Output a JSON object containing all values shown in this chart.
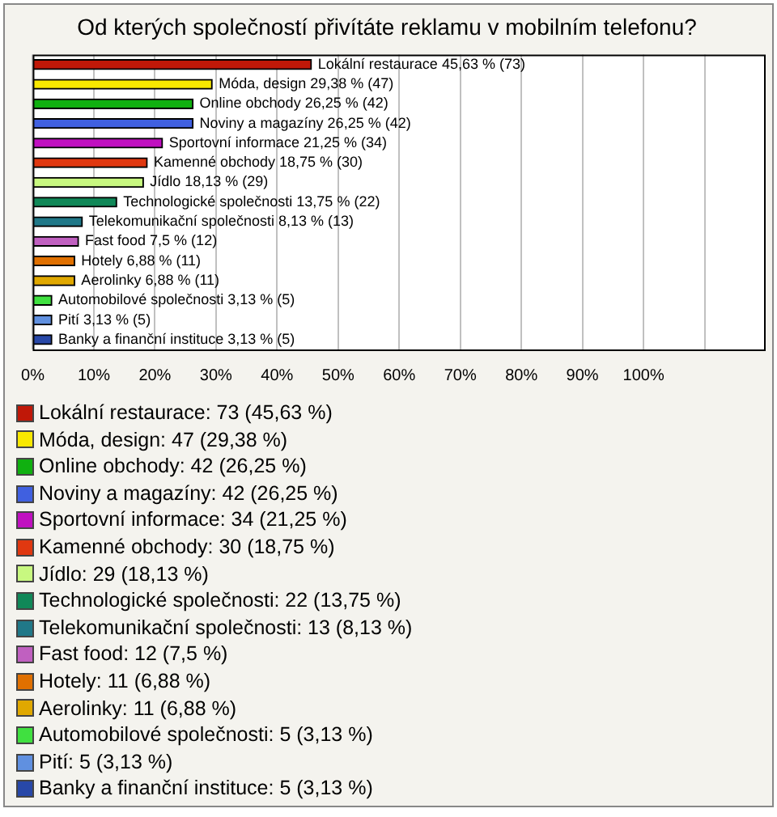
{
  "chart_data": {
    "type": "bar",
    "orientation": "horizontal",
    "title": "Od kterých společností přivítáte reklamu v mobilním telefonu?",
    "categories": [
      "Lokální restaurace",
      "Móda, design",
      "Online obchody",
      "Noviny a magazíny",
      "Sportovní informace",
      "Kamenné obchody",
      "Jídlo",
      "Technologické společnosti",
      "Telekomunikační společnosti",
      "Fast food",
      "Hotely",
      "Aerolinky",
      "Automobilové společnosti",
      "Pití",
      "Banky a finanční instituce"
    ],
    "values": [
      45.63,
      29.38,
      26.25,
      26.25,
      21.25,
      18.75,
      18.13,
      13.75,
      8.13,
      7.5,
      6.88,
      6.88,
      3.13,
      3.13,
      3.13
    ],
    "value_labels": [
      "45,63 % (73)",
      "29,38 % (47)",
      "26,25 % (42)",
      "26,25 % (42)",
      "21,25 % (34)",
      "18,75 % (30)",
      "18,13 % (29)",
      "13,75 % (22)",
      "8,13 % (13)",
      "7,5 % (12)",
      "6,88 % (11)",
      "6,88 % (11)",
      "3,13 % (5)",
      "3,13 % (5)",
      "3,13 % (5)"
    ],
    "colors": [
      "#c01808",
      "#f8e800",
      "#10b010",
      "#4060e0",
      "#c010c0",
      "#e03810",
      "#c8f880",
      "#108858",
      "#207888",
      "#c060c0",
      "#e07000",
      "#e0a800",
      "#40e040",
      "#6090e0",
      "#2848a8"
    ],
    "annotations": [
      "Lokální restaurace: 73 (45,63 %)",
      "Móda, design: 47 (29,38 %)",
      "Online obchody: 42 (26,25 %)",
      "Noviny a magazíny: 42 (26,25 %)",
      "Sportovní informace: 34 (21,25 %)",
      "Kamenné obchody: 30 (18,75 %)",
      "Jídlo: 29 (18,13 %)",
      "Technologické společnosti: 22 (13,75 %)",
      "Telekomunikační společnosti: 13 (8,13 %)",
      "Fast food: 12 (7,5 %)",
      "Hotely: 11 (6,88 %)",
      "Aerolinky: 11 (6,88 %)",
      "Automobilové společnosti: 5 (3,13 %)",
      "Pití: 5 (3,13 %)",
      "Banky a finanční instituce: 5 (3,13 %)"
    ],
    "xlim": [
      0,
      120
    ],
    "xticks": [
      {
        "value": 0,
        "label": "0%"
      },
      {
        "value": 10,
        "label": "10%"
      },
      {
        "value": 20,
        "label": "20%"
      },
      {
        "value": 30,
        "label": "30%"
      },
      {
        "value": 40,
        "label": "40%"
      },
      {
        "value": 50,
        "label": "50%"
      },
      {
        "value": 60,
        "label": "60%"
      },
      {
        "value": 70,
        "label": "70%"
      },
      {
        "value": 80,
        "label": "80%"
      },
      {
        "value": 90,
        "label": "90%"
      },
      {
        "value": 100,
        "label": "100%"
      },
      {
        "value": 110,
        "label": null
      }
    ],
    "grid": "x",
    "tick_labels": "x"
  }
}
